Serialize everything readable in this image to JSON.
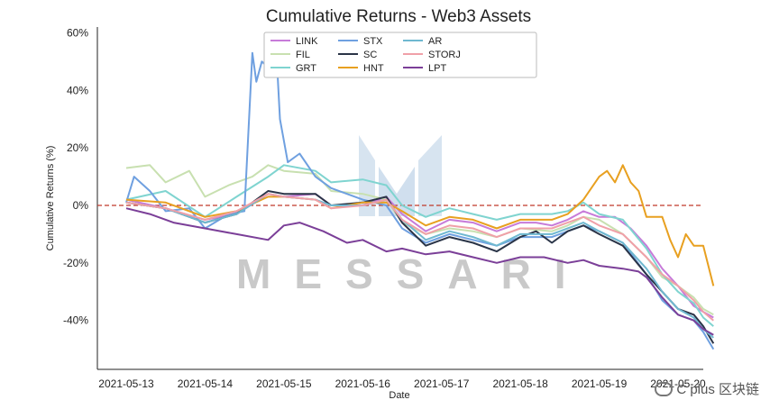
{
  "chart_data": {
    "type": "line",
    "title": "Cumulative Returns - Web3 Assets",
    "xlabel": "Date",
    "ylabel": "Cumulative Returns (%)",
    "x_ticks": [
      "2021-05-13",
      "2021-05-14",
      "2021-05-15",
      "2021-05-16",
      "2021-05-17",
      "2021-05-18",
      "2021-05-19",
      "2021-05-20"
    ],
    "x_range": [
      0,
      7.55
    ],
    "ylim": [
      -57,
      62
    ],
    "y_ticks": [
      60,
      40,
      20,
      0,
      -20,
      -40
    ],
    "y_tick_labels": [
      "60%",
      "40%",
      "20%",
      "0%",
      "-20%",
      "-40%"
    ],
    "reference_line": 0,
    "reference_color": "#c0392b",
    "legend_placement": "top",
    "series": [
      {
        "name": "LINK",
        "color": "#c77bd9",
        "points": [
          [
            0,
            2
          ],
          [
            0.5,
            -1
          ],
          [
            1,
            -5
          ],
          [
            1.4,
            -3
          ],
          [
            1.8,
            4
          ],
          [
            2,
            3
          ],
          [
            2.4,
            4
          ],
          [
            2.6,
            0
          ],
          [
            3,
            0
          ],
          [
            3.3,
            3
          ],
          [
            3.5,
            -3
          ],
          [
            3.8,
            -9
          ],
          [
            4.1,
            -5
          ],
          [
            4.4,
            -6
          ],
          [
            4.7,
            -9
          ],
          [
            5,
            -6
          ],
          [
            5.2,
            -6
          ],
          [
            5.4,
            -7
          ],
          [
            5.6,
            -5
          ],
          [
            5.8,
            -2
          ],
          [
            6,
            -4
          ],
          [
            6.2,
            -4
          ],
          [
            6.4,
            -8
          ],
          [
            6.6,
            -14
          ],
          [
            6.8,
            -22
          ],
          [
            7,
            -28
          ],
          [
            7.2,
            -35
          ],
          [
            7.32,
            -37
          ],
          [
            7.45,
            -39
          ]
        ]
      },
      {
        "name": "FIL",
        "color": "#c8e0b0",
        "points": [
          [
            0,
            13
          ],
          [
            0.3,
            14
          ],
          [
            0.5,
            8
          ],
          [
            0.8,
            12
          ],
          [
            1,
            3
          ],
          [
            1.3,
            7
          ],
          [
            1.6,
            10
          ],
          [
            1.8,
            14
          ],
          [
            2,
            12
          ],
          [
            2.4,
            11
          ],
          [
            2.6,
            5
          ],
          [
            3,
            4
          ],
          [
            3.3,
            2
          ],
          [
            3.5,
            -6
          ],
          [
            3.8,
            -10
          ],
          [
            4.1,
            -8
          ],
          [
            4.4,
            -9
          ],
          [
            4.7,
            -11
          ],
          [
            5,
            -8
          ],
          [
            5.4,
            -9
          ],
          [
            5.6,
            -7
          ],
          [
            5.8,
            -4
          ],
          [
            6,
            -5
          ],
          [
            6.3,
            -10
          ],
          [
            6.6,
            -18
          ],
          [
            6.8,
            -25
          ],
          [
            7,
            -28
          ],
          [
            7.2,
            -32
          ],
          [
            7.32,
            -36
          ],
          [
            7.45,
            -38
          ]
        ]
      },
      {
        "name": "GRT",
        "color": "#7fd4d0",
        "points": [
          [
            0,
            2
          ],
          [
            0.5,
            5
          ],
          [
            1,
            -4
          ],
          [
            1.4,
            3
          ],
          [
            1.8,
            10
          ],
          [
            2,
            14
          ],
          [
            2.4,
            12
          ],
          [
            2.6,
            8
          ],
          [
            3,
            9
          ],
          [
            3.3,
            7
          ],
          [
            3.5,
            0
          ],
          [
            3.8,
            -4
          ],
          [
            4.1,
            -1
          ],
          [
            4.4,
            -3
          ],
          [
            4.7,
            -5
          ],
          [
            5,
            -3
          ],
          [
            5.4,
            -3
          ],
          [
            5.6,
            -2
          ],
          [
            5.8,
            1
          ],
          [
            6,
            -3
          ],
          [
            6.3,
            -5
          ],
          [
            6.6,
            -15
          ],
          [
            6.8,
            -24
          ],
          [
            7,
            -30
          ],
          [
            7.2,
            -34
          ],
          [
            7.32,
            -39
          ],
          [
            7.45,
            -42
          ]
        ]
      },
      {
        "name": "STX",
        "color": "#6fa0e0",
        "points": [
          [
            0,
            1
          ],
          [
            0.1,
            10
          ],
          [
            0.3,
            5
          ],
          [
            0.5,
            -2
          ],
          [
            0.8,
            -1
          ],
          [
            1,
            -8
          ],
          [
            1.3,
            -3
          ],
          [
            1.5,
            -2
          ],
          [
            1.6,
            53
          ],
          [
            1.65,
            43
          ],
          [
            1.72,
            50
          ],
          [
            1.8,
            48
          ],
          [
            1.9,
            56
          ],
          [
            1.95,
            30
          ],
          [
            2.05,
            15
          ],
          [
            2.2,
            18
          ],
          [
            2.4,
            10
          ],
          [
            2.6,
            6
          ],
          [
            3,
            2
          ],
          [
            3.3,
            0
          ],
          [
            3.5,
            -8
          ],
          [
            3.8,
            -13
          ],
          [
            4.1,
            -10
          ],
          [
            4.4,
            -12
          ],
          [
            4.7,
            -14
          ],
          [
            5,
            -11
          ],
          [
            5.4,
            -11
          ],
          [
            5.6,
            -9
          ],
          [
            5.8,
            -7
          ],
          [
            6,
            -9
          ],
          [
            6.3,
            -13
          ],
          [
            6.6,
            -24
          ],
          [
            6.8,
            -33
          ],
          [
            7,
            -38
          ],
          [
            7.2,
            -40
          ],
          [
            7.32,
            -44
          ],
          [
            7.45,
            -50
          ]
        ]
      },
      {
        "name": "SC",
        "color": "#2a3447",
        "points": [
          [
            0,
            1
          ],
          [
            0.5,
            -1
          ],
          [
            1,
            -6
          ],
          [
            1.4,
            -3
          ],
          [
            1.8,
            5
          ],
          [
            2,
            4
          ],
          [
            2.4,
            4
          ],
          [
            2.6,
            0
          ],
          [
            3,
            1
          ],
          [
            3.3,
            3
          ],
          [
            3.5,
            -6
          ],
          [
            3.8,
            -14
          ],
          [
            4.1,
            -11
          ],
          [
            4.4,
            -13
          ],
          [
            4.7,
            -16
          ],
          [
            5,
            -11
          ],
          [
            5.2,
            -9
          ],
          [
            5.4,
            -13
          ],
          [
            5.6,
            -9
          ],
          [
            5.8,
            -7
          ],
          [
            6,
            -10
          ],
          [
            6.3,
            -14
          ],
          [
            6.6,
            -24
          ],
          [
            6.8,
            -30
          ],
          [
            7,
            -36
          ],
          [
            7.2,
            -38
          ],
          [
            7.32,
            -42
          ],
          [
            7.45,
            -48
          ]
        ]
      },
      {
        "name": "HNT",
        "color": "#e8a020",
        "points": [
          [
            0,
            2
          ],
          [
            0.5,
            1
          ],
          [
            1,
            -4
          ],
          [
            1.4,
            -2
          ],
          [
            1.8,
            3
          ],
          [
            2,
            3
          ],
          [
            2.4,
            2
          ],
          [
            2.6,
            -1
          ],
          [
            3,
            1
          ],
          [
            3.3,
            1
          ],
          [
            3.5,
            -2
          ],
          [
            3.8,
            -7
          ],
          [
            4.1,
            -4
          ],
          [
            4.4,
            -5
          ],
          [
            4.7,
            -8
          ],
          [
            5,
            -5
          ],
          [
            5.4,
            -5
          ],
          [
            5.6,
            -3
          ],
          [
            5.8,
            2
          ],
          [
            6,
            10
          ],
          [
            6.1,
            12
          ],
          [
            6.2,
            8
          ],
          [
            6.3,
            14
          ],
          [
            6.4,
            8
          ],
          [
            6.5,
            5
          ],
          [
            6.6,
            -4
          ],
          [
            6.8,
            -4
          ],
          [
            6.9,
            -12
          ],
          [
            7,
            -18
          ],
          [
            7.1,
            -10
          ],
          [
            7.2,
            -14
          ],
          [
            7.32,
            -14
          ],
          [
            7.45,
            -28
          ]
        ]
      },
      {
        "name": "AR",
        "color": "#6fb8d0",
        "points": [
          [
            0,
            1
          ],
          [
            0.5,
            -1
          ],
          [
            1,
            -6
          ],
          [
            1.4,
            -3
          ],
          [
            1.8,
            4
          ],
          [
            2,
            3
          ],
          [
            2.4,
            2
          ],
          [
            2.6,
            0
          ],
          [
            3,
            0
          ],
          [
            3.3,
            2
          ],
          [
            3.5,
            -5
          ],
          [
            3.8,
            -12
          ],
          [
            4.1,
            -9
          ],
          [
            4.4,
            -11
          ],
          [
            4.7,
            -14
          ],
          [
            5,
            -10
          ],
          [
            5.4,
            -10
          ],
          [
            5.6,
            -8
          ],
          [
            5.8,
            -6
          ],
          [
            6,
            -9
          ],
          [
            6.3,
            -13
          ],
          [
            6.6,
            -22
          ],
          [
            6.8,
            -30
          ],
          [
            7,
            -36
          ],
          [
            7.2,
            -39
          ],
          [
            7.32,
            -43
          ],
          [
            7.45,
            -46
          ]
        ]
      },
      {
        "name": "STORJ",
        "color": "#f0a0a8",
        "points": [
          [
            0,
            1
          ],
          [
            0.5,
            -1
          ],
          [
            1,
            -5
          ],
          [
            1.4,
            -2
          ],
          [
            1.8,
            4
          ],
          [
            2,
            3
          ],
          [
            2.4,
            2
          ],
          [
            2.6,
            -1
          ],
          [
            3,
            0
          ],
          [
            3.3,
            2
          ],
          [
            3.5,
            -5
          ],
          [
            3.8,
            -10
          ],
          [
            4.1,
            -7
          ],
          [
            4.4,
            -8
          ],
          [
            4.7,
            -11
          ],
          [
            5,
            -8
          ],
          [
            5.4,
            -8
          ],
          [
            5.6,
            -6
          ],
          [
            5.8,
            -4
          ],
          [
            6,
            -7
          ],
          [
            6.3,
            -10
          ],
          [
            6.6,
            -18
          ],
          [
            6.8,
            -24
          ],
          [
            7,
            -28
          ],
          [
            7.2,
            -33
          ],
          [
            7.32,
            -37
          ],
          [
            7.45,
            -40
          ]
        ]
      },
      {
        "name": "LPT",
        "color": "#7b3f98",
        "points": [
          [
            0,
            -1
          ],
          [
            0.3,
            -3
          ],
          [
            0.6,
            -6
          ],
          [
            1,
            -8
          ],
          [
            1.4,
            -10
          ],
          [
            1.8,
            -12
          ],
          [
            2,
            -7
          ],
          [
            2.2,
            -6
          ],
          [
            2.5,
            -9
          ],
          [
            2.8,
            -13
          ],
          [
            3,
            -12
          ],
          [
            3.3,
            -16
          ],
          [
            3.5,
            -15
          ],
          [
            3.8,
            -17
          ],
          [
            4.1,
            -16
          ],
          [
            4.4,
            -18
          ],
          [
            4.7,
            -20
          ],
          [
            5,
            -18
          ],
          [
            5.3,
            -18
          ],
          [
            5.6,
            -20
          ],
          [
            5.8,
            -19
          ],
          [
            6,
            -21
          ],
          [
            6.3,
            -22
          ],
          [
            6.5,
            -23
          ],
          [
            6.6,
            -25
          ],
          [
            6.8,
            -32
          ],
          [
            7,
            -38
          ],
          [
            7.2,
            -40
          ],
          [
            7.32,
            -43
          ],
          [
            7.45,
            -45
          ]
        ]
      }
    ]
  },
  "watermark": {
    "text": "MESSARI",
    "color": "#c9c9c9"
  },
  "credit": {
    "text": "C plus 区块链",
    "icon": "wechat-icon"
  }
}
